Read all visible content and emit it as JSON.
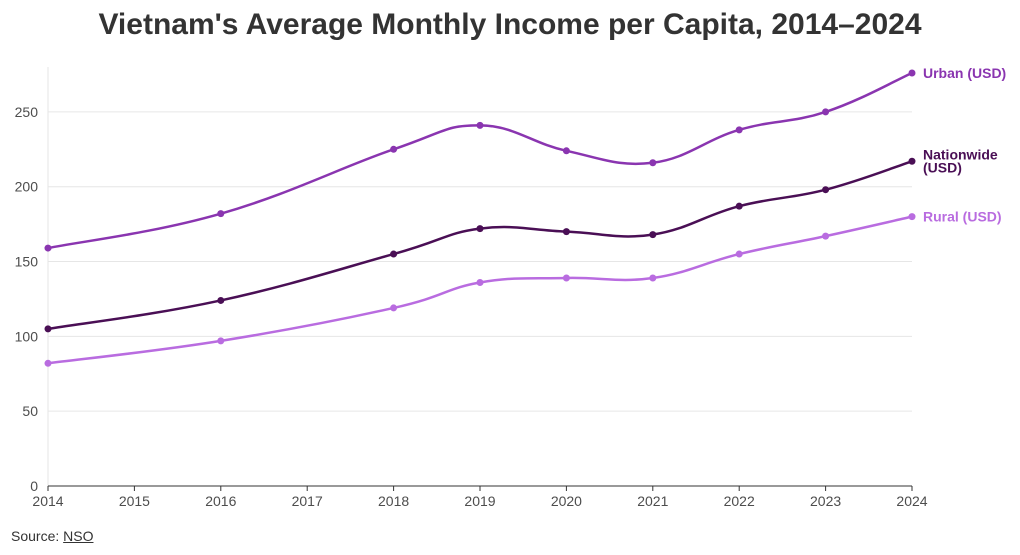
{
  "chart_data": {
    "type": "line",
    "title": "Vietnam's Average Monthly Income per Capita, 2014–2024",
    "x": [
      2014,
      2016,
      2018,
      2019,
      2020,
      2021,
      2022,
      2023,
      2024
    ],
    "x_ticks": [
      "2014",
      "2015",
      "2016",
      "2017",
      "2018",
      "2019",
      "2020",
      "2021",
      "2022",
      "2023",
      "2024"
    ],
    "y_ticks": [
      "0",
      "50",
      "100",
      "150",
      "200",
      "250"
    ],
    "xlim": [
      2014,
      2024
    ],
    "ylim": [
      0,
      280
    ],
    "grid": true,
    "series": [
      {
        "name": "Urban (USD)",
        "color": "#8a35b0",
        "values": [
          159,
          182,
          225,
          241,
          224,
          216,
          238,
          250,
          276
        ]
      },
      {
        "name": "Nationwide (USD)",
        "color": "#4a0f55",
        "values": [
          105,
          124,
          155,
          172,
          170,
          168,
          187,
          198,
          217
        ]
      },
      {
        "name": "Rural (USD)",
        "color": "#b96ce0",
        "values": [
          82,
          97,
          119,
          136,
          139,
          139,
          155,
          167,
          180
        ]
      }
    ]
  },
  "source": {
    "label": "Source:",
    "link_text": "NSO"
  }
}
